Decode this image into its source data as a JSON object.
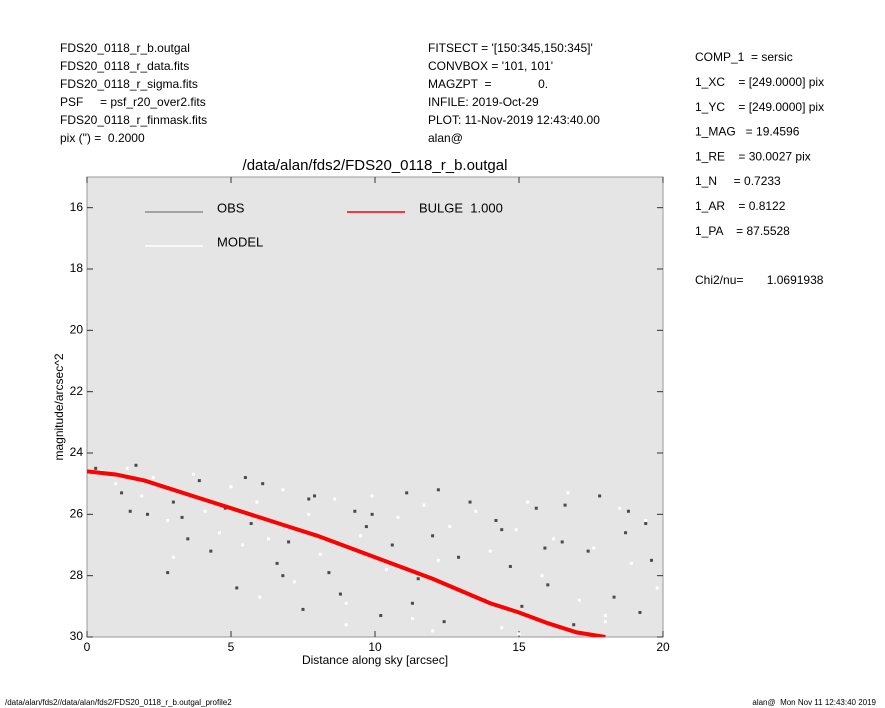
{
  "chart_data": {
    "type": "scatter",
    "title": "/data/alan/fds2/FDS20_0118_r_b.outgal",
    "x_label": "Distance along sky [arcsec]",
    "y_label": "magnitude/arcsec^2",
    "xlim": [
      0,
      20
    ],
    "xticks": [
      0,
      5,
      10,
      15,
      20
    ],
    "ylim": [
      30,
      15
    ],
    "yticks": [
      16,
      18,
      20,
      22,
      24,
      26,
      28,
      30
    ],
    "y_inverted": true,
    "grid": false,
    "background": "#e5e5e5",
    "info_left": [
      "FDS20_0118_r_b.outgal",
      "FDS20_0118_r_data.fits",
      "FDS20_0118_r_sigma.fits",
      "PSF     = psf_r20_over2.fits",
      "FDS20_0118_r_finmask.fits",
      "pix (\") =  0.2000"
    ],
    "info_middle": [
      "FITSECT = '[150:345,150:345]'",
      "CONVBOX = '101, 101'",
      "MAGZPT  =              0.",
      "INFILE: 2019-Oct-29",
      "PLOT: 11-Nov-2019 12:43:40.00",
      "alan@"
    ],
    "info_right": [
      "COMP_1  = sersic",
      "1_XC    = [249.0000] pix",
      "1_YC    = [249.0000] pix",
      "1_MAG   = 19.4596",
      "1_RE    = 30.0027 pix",
      "1_N     = 0.7233",
      "1_AR    = 0.8122",
      "1_PA    = 87.5528",
      "Chi2/nu=       1.0691938"
    ],
    "footer_left": "/data/alan/fds2//data/alan/fds2/FDS20_0118_r_b.outgal_profile2",
    "footer_right": "alan@  Mon Nov 11 12:43:40 2019",
    "series": [
      {
        "name": "OBS",
        "color": "#4a4a4a",
        "legend_color": "#8c8c8c",
        "mode": "points",
        "x": [
          0.3,
          0.8,
          1.2,
          1.7,
          2.1,
          2.6,
          3.0,
          3.5,
          3.9,
          4.3,
          4.8,
          5.2,
          5.7,
          6.1,
          6.6,
          7.0,
          7.5,
          7.9,
          8.4,
          8.8,
          9.3,
          9.7,
          10.2,
          10.6,
          11.1,
          11.5,
          12.0,
          12.4,
          12.9,
          13.3,
          13.8,
          14.2,
          14.7,
          15.1,
          15.6,
          16.0,
          16.5,
          16.9,
          17.4,
          17.8,
          18.3,
          18.7,
          19.2,
          19.6,
          1.5,
          3.3,
          5.5,
          7.7,
          9.9,
          12.2,
          14.4,
          16.6,
          18.8,
          2.8,
          6.8,
          11.3,
          15.9,
          19.4
        ],
        "values": [
          24.5,
          24.7,
          25.3,
          24.4,
          26.0,
          25.1,
          25.6,
          26.8,
          24.9,
          27.2,
          25.8,
          28.4,
          26.3,
          25.0,
          27.6,
          26.9,
          29.1,
          25.4,
          27.9,
          28.6,
          25.9,
          26.4,
          29.3,
          27.0,
          25.3,
          28.1,
          26.7,
          29.5,
          27.4,
          25.6,
          28.8,
          26.2,
          27.7,
          29.0,
          25.8,
          28.3,
          26.9,
          29.6,
          27.2,
          25.4,
          28.7,
          26.6,
          29.2,
          27.5,
          25.9,
          26.1,
          24.8,
          25.5,
          26.0,
          25.2,
          26.5,
          25.7,
          25.9,
          27.9,
          28.0,
          28.9,
          27.1,
          26.3
        ]
      },
      {
        "name": "MODEL",
        "color": "#ffffff",
        "legend_color": "#ffffff",
        "mode": "points",
        "x": [
          0.5,
          1.0,
          1.4,
          1.9,
          2.3,
          2.8,
          3.2,
          3.7,
          4.1,
          4.6,
          5.0,
          5.4,
          5.9,
          6.3,
          6.8,
          7.2,
          7.7,
          8.1,
          8.6,
          9.0,
          9.5,
          9.9,
          10.4,
          10.8,
          11.3,
          11.7,
          12.2,
          12.6,
          13.1,
          13.5,
          14.0,
          14.4,
          14.9,
          15.3,
          15.8,
          16.2,
          16.7,
          17.1,
          17.6,
          18.0,
          18.5,
          18.9,
          19.4,
          19.8,
          3.0,
          6.0,
          9.0,
          12.0,
          15.0,
          18.0
        ],
        "values": [
          24.6,
          25.0,
          24.5,
          25.4,
          24.8,
          26.2,
          25.3,
          24.7,
          25.9,
          26.6,
          25.1,
          27.0,
          25.6,
          26.8,
          25.2,
          28.2,
          26.0,
          27.3,
          25.5,
          28.9,
          26.7,
          25.4,
          27.8,
          26.1,
          29.4,
          25.7,
          27.5,
          26.4,
          28.6,
          25.9,
          27.2,
          29.7,
          26.5,
          25.6,
          28.0,
          26.8,
          25.3,
          28.8,
          27.1,
          29.3,
          25.8,
          27.6,
          26.2,
          28.4,
          27.4,
          28.7,
          29.6,
          29.8,
          29.9,
          29.5
        ]
      },
      {
        "name": "BULGE  1.000",
        "color": "#ff0000",
        "legend_color": "#ff0000",
        "mode": "line",
        "x": [
          0,
          1,
          2,
          3,
          4,
          5,
          6,
          7,
          8,
          9,
          10,
          11,
          12,
          13,
          14,
          15,
          16,
          17,
          18
        ],
        "values": [
          24.6,
          24.7,
          24.9,
          25.2,
          25.5,
          25.8,
          26.1,
          26.4,
          26.7,
          27.05,
          27.4,
          27.75,
          28.1,
          28.5,
          28.9,
          29.2,
          29.55,
          29.85,
          30.0
        ]
      }
    ]
  }
}
